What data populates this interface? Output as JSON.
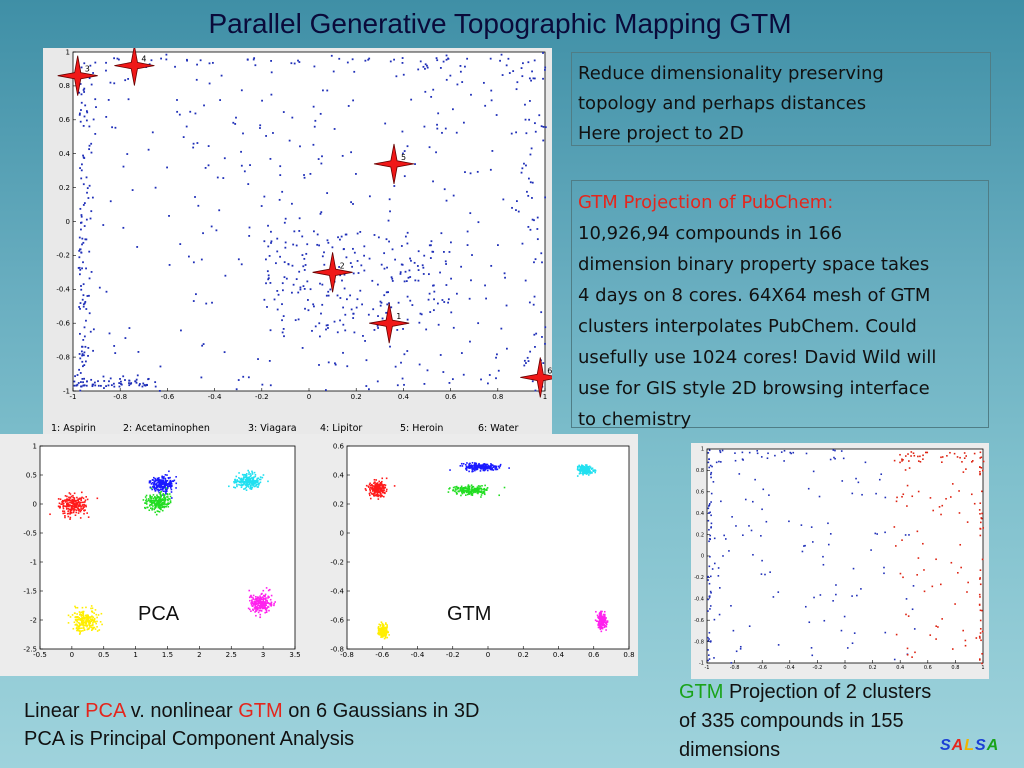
{
  "slide": {
    "title": "Parallel Generative Topographic Mapping GTM",
    "box1": {
      "lines": [
        "Reduce dimensionality preserving",
        "topology and perhaps distances",
        "Here project to 2D"
      ]
    },
    "box2": {
      "heading": "GTM Projection of PubChem:",
      "lines": [
        "10,926,94 compounds in 166",
        "dimension binary property space takes",
        "4 days on 8 cores. 64X64 mesh of GTM",
        "clusters interpolates PubChem. Could",
        "usefully use 1024 cores! David Wild will",
        "use for GIS style 2D browsing interface",
        "to chemistry"
      ]
    },
    "bottom_left": {
      "line1_a": "Linear ",
      "line1_pca": "PCA",
      "line1_b": " v. nonlinear ",
      "line1_gtm": "GTM",
      "line1_c": " on 6 Gaussians in 3D",
      "line2": "PCA is Principal Component Analysis"
    },
    "bottom_right": {
      "gtm": "GTM",
      "rest": " Projection of 2 clusters",
      "line2": "of 335 compounds in 155",
      "line3": "dimensions"
    },
    "logo": {
      "letters": [
        "S",
        "A",
        "L",
        "S",
        "A"
      ],
      "colors": [
        "#1a3fd6",
        "#e4261d",
        "#f0b400",
        "#1a3fd6",
        "#1aa31a"
      ]
    }
  },
  "chart_data": [
    {
      "type": "scatter",
      "xlim": [
        -1,
        1
      ],
      "ylim": [
        -1,
        1
      ],
      "xticks": [
        "-1",
        "-0.8",
        "-0.6",
        "-0.4",
        "-0.2",
        "0",
        "0.2",
        "0.4",
        "0.6",
        "0.8",
        "1"
      ],
      "yticks": [
        "1",
        "0.8",
        "0.6",
        "0.4",
        "0.2",
        "0",
        "-0.2",
        "-0.4",
        "-0.6",
        "-0.8",
        "-1"
      ],
      "color": "#1f2fb8",
      "markers": [
        {
          "label": "3",
          "x": -0.98,
          "y": 0.86
        },
        {
          "label": "4",
          "x": -0.74,
          "y": 0.92
        },
        {
          "label": "5",
          "x": 0.36,
          "y": 0.34
        },
        {
          "label": "2",
          "x": 0.1,
          "y": -0.3
        },
        {
          "label": "1",
          "x": 0.34,
          "y": -0.6
        },
        {
          "label": "6",
          "x": 0.98,
          "y": -0.92
        }
      ],
      "legend": [
        "1: Aspirin",
        "2: Acetaminophen",
        "3: Viagara",
        "4: Lipitor",
        "5: Heroin",
        "6: Water"
      ]
    },
    {
      "type": "scatter",
      "xlim": [
        -0.5,
        3.5
      ],
      "ylim": [
        -2.5,
        1
      ],
      "xticks": [
        "-0.5",
        "0",
        "0.5",
        "1",
        "1.5",
        "2",
        "2.5",
        "3",
        "3.5"
      ],
      "yticks": [
        "1",
        "0.5",
        "0",
        "-0.5",
        "-1",
        "-1.5",
        "-2",
        "-2.5"
      ],
      "label": "PCA",
      "clusters": [
        {
          "color": "#ff1a1a",
          "cx": 0.0,
          "cy": 0.0,
          "sx": 0.11,
          "sy": 0.09
        },
        {
          "color": "#1a1aff",
          "cx": 1.4,
          "cy": 0.35,
          "sx": 0.09,
          "sy": 0.07
        },
        {
          "color": "#22dd22",
          "cx": 1.35,
          "cy": 0.05,
          "sx": 0.09,
          "sy": 0.07
        },
        {
          "color": "#22e0f0",
          "cx": 2.75,
          "cy": 0.4,
          "sx": 0.1,
          "sy": 0.07
        },
        {
          "color": "#ffee00",
          "cx": 0.2,
          "cy": -2.0,
          "sx": 0.1,
          "sy": 0.09
        },
        {
          "color": "#ff22ee",
          "cx": 2.95,
          "cy": -1.7,
          "sx": 0.09,
          "sy": 0.09
        }
      ]
    },
    {
      "type": "scatter",
      "xlim": [
        -0.8,
        0.8
      ],
      "ylim": [
        -0.8,
        0.6
      ],
      "xticks": [
        "-0.8",
        "-0.6",
        "-0.4",
        "-0.2",
        "0",
        "0.2",
        "0.4",
        "0.6",
        "0.8"
      ],
      "yticks": [
        "0.6",
        "0.4",
        "0.2",
        "0",
        "-0.2",
        "-0.4",
        "-0.6",
        "-0.8"
      ],
      "label": "GTM",
      "clusters": [
        {
          "color": "#ff1a1a",
          "cx": -0.63,
          "cy": 0.31,
          "sx": 0.025,
          "sy": 0.025
        },
        {
          "color": "#1a1aff",
          "cx": -0.05,
          "cy": 0.46,
          "sx": 0.05,
          "sy": 0.012
        },
        {
          "color": "#22dd22",
          "cx": -0.1,
          "cy": 0.3,
          "sx": 0.05,
          "sy": 0.015
        },
        {
          "color": "#22e0f0",
          "cx": 0.55,
          "cy": 0.44,
          "sx": 0.02,
          "sy": 0.015
        },
        {
          "color": "#ffee00",
          "cx": -0.6,
          "cy": -0.67,
          "sx": 0.012,
          "sy": 0.02
        },
        {
          "color": "#ff22ee",
          "cx": 0.64,
          "cy": -0.6,
          "sx": 0.012,
          "sy": 0.025
        }
      ]
    },
    {
      "type": "scatter",
      "xlim": [
        -1,
        1
      ],
      "ylim": [
        -1,
        1
      ],
      "xticks": [
        "-1",
        "-0.8",
        "-0.6",
        "-0.4",
        "-0.2",
        "0",
        "0.2",
        "0.4",
        "0.6",
        "0.8",
        "1"
      ],
      "yticks": [
        "1",
        "0.8",
        "0.6",
        "0.4",
        "0.2",
        "0",
        "-0.2",
        "-0.4",
        "-0.6",
        "-0.8",
        "-1"
      ],
      "clusters": [
        {
          "color": "#1f2fb8",
          "region": "left"
        },
        {
          "color": "#dd2211",
          "region": "right"
        }
      ]
    }
  ]
}
